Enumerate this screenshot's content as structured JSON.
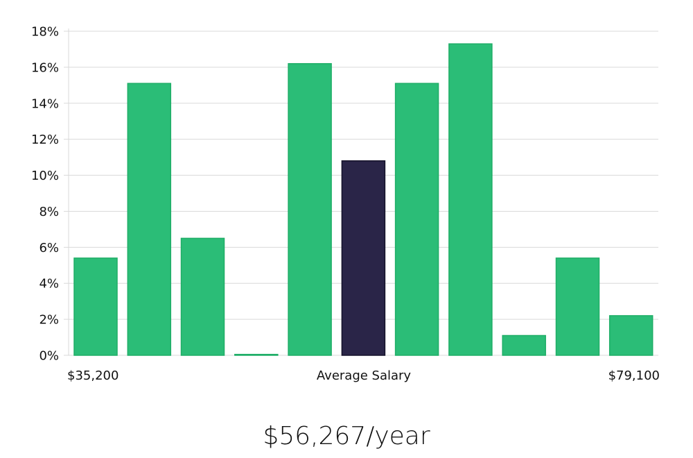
{
  "chart_data": {
    "type": "bar",
    "title": "",
    "xlabel": "Average Salary",
    "ylabel": "",
    "x_range_labels": [
      "$35,200",
      "$79,100"
    ],
    "ylim": [
      0,
      18
    ],
    "yticks": [
      0,
      2,
      4,
      6,
      8,
      10,
      12,
      14,
      16,
      18
    ],
    "ytick_labels": [
      "0%",
      "2%",
      "4%",
      "6%",
      "8%",
      "10%",
      "12%",
      "14%",
      "16%",
      "18%"
    ],
    "values": [
      5.4,
      15.1,
      6.5,
      0.05,
      16.2,
      10.8,
      15.1,
      17.3,
      1.1,
      5.4,
      2.2
    ],
    "highlight_index": 5,
    "grid": true
  },
  "colors": {
    "bar": "#2bbd77",
    "bar_edge": "#1fae67",
    "highlight": "#2a2548",
    "highlight_edge": "#14112a",
    "grid": "#d9d9d9"
  },
  "summary": {
    "average_salary": "$56,267/year"
  }
}
